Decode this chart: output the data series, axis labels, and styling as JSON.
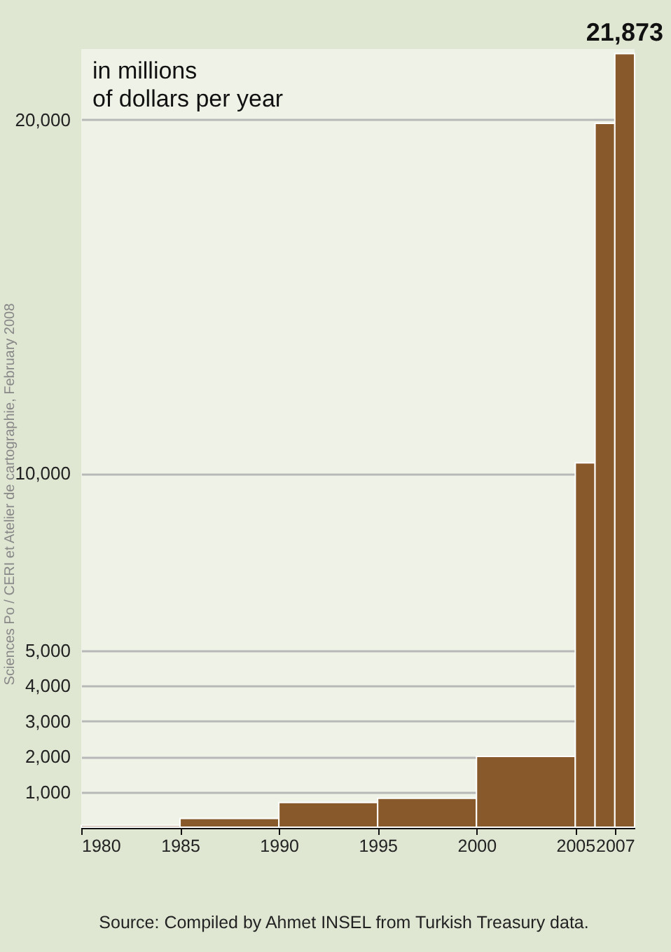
{
  "chart_data": {
    "type": "histogram",
    "ylabel": "in millions\nof dollars per year",
    "bins": [
      1980,
      1985,
      1990,
      1995,
      2000,
      2005,
      2006,
      2007,
      2008
    ],
    "values": [
      50,
      250,
      700,
      820,
      2000,
      10300,
      19900,
      21873
    ],
    "value_labels": [
      null,
      null,
      null,
      null,
      null,
      null,
      null,
      "21,873"
    ],
    "color": "#87592b",
    "xlim": [
      1980,
      2008
    ],
    "xticks": [
      1980,
      1985,
      1990,
      1995,
      2000,
      2005,
      2007
    ],
    "ylim": [
      0,
      22000
    ],
    "yticks": [
      {
        "value": 1000,
        "label": "1,000"
      },
      {
        "value": 2000,
        "label": "2,000"
      },
      {
        "value": 3000,
        "label": "3,000"
      },
      {
        "value": 4000,
        "label": "4,000"
      },
      {
        "value": 5000,
        "label": "5,000"
      },
      {
        "value": 10000,
        "label": "10,000"
      },
      {
        "value": 20000,
        "label": "20,000"
      }
    ],
    "grid": "y",
    "annotations": [
      "Source: Compiled by Ahmet INSEL from Turkish Treasury data.",
      "Sciences Po / CERI et Atelier de cartographie, February 2008"
    ]
  }
}
